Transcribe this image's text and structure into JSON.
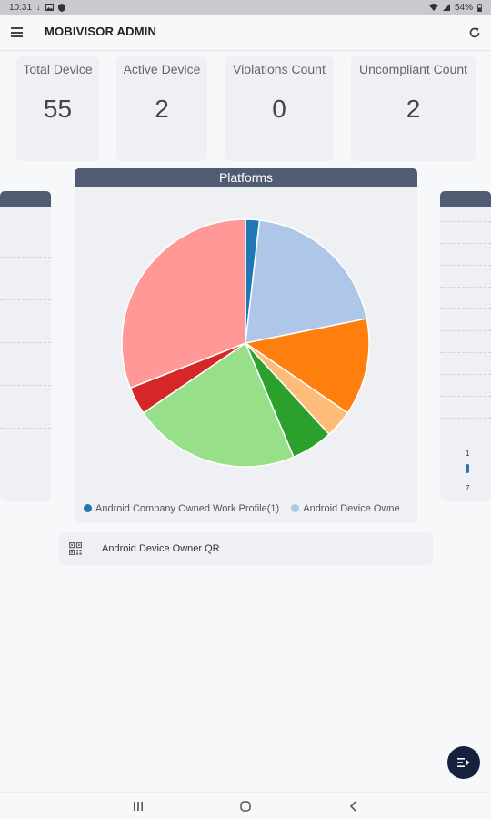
{
  "status_bar": {
    "time": "10:31",
    "battery": "54%",
    "icons": [
      "download-icon",
      "image-icon",
      "shield-icon",
      "wifi-icon",
      "signal-icon",
      "battery-icon"
    ]
  },
  "app_bar": {
    "title": "MOBIVISOR ADMIN",
    "icons": [
      "menu-icon",
      "refresh-icon"
    ]
  },
  "stats": [
    {
      "label": "Total Device",
      "value": "55"
    },
    {
      "label": "Active Device",
      "value": "2"
    },
    {
      "label": "Violations Count",
      "value": "0"
    },
    {
      "label": "Uncompliant Count",
      "value": "2"
    }
  ],
  "platforms": {
    "title": "Platforms",
    "legend": [
      {
        "label": "Android Company Owned Work Profile(1)",
        "color": "#1f77b4"
      },
      {
        "label": "Android Device Owne",
        "color": "#aec7e8"
      }
    ]
  },
  "chart_data": {
    "type": "pie",
    "slices": [
      {
        "value": 1,
        "color": "#1f77b4"
      },
      {
        "value": 11,
        "color": "#aec7e8"
      },
      {
        "value": 7,
        "color": "#ff7f0e"
      },
      {
        "value": 2,
        "color": "#ffbb78"
      },
      {
        "value": 3,
        "color": "#2ca02c"
      },
      {
        "value": 12,
        "color": "#98df8a"
      },
      {
        "value": 2,
        "color": "#d62728"
      },
      {
        "value": 17,
        "color": "#ff9896"
      }
    ]
  },
  "qr_item": {
    "label": "Android Device Owner QR",
    "icon": "qr-code-icon"
  },
  "right_panel": {
    "top_value": "1",
    "bottom_value": "7"
  },
  "fab": {
    "icon": "menu-close-icon"
  },
  "nav_bar": {
    "icons": [
      "recent-apps-icon",
      "home-icon",
      "back-icon"
    ]
  }
}
